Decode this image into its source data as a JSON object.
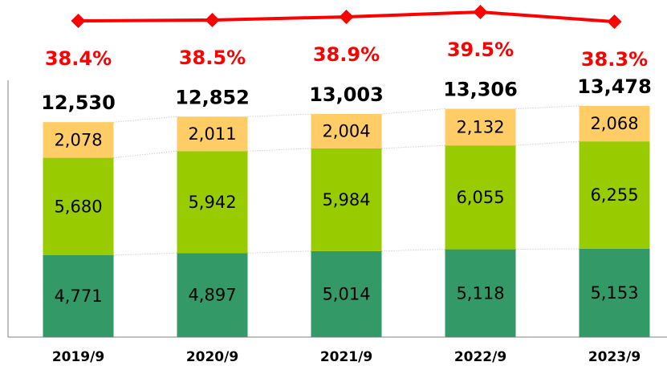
{
  "chart_data": {
    "type": "bar",
    "categories": [
      "2019/9",
      "2020/9",
      "2021/9",
      "2022/9",
      "2023/9"
    ],
    "stacked": true,
    "ylim": [
      0,
      14000
    ],
    "y2lim": [
      36,
      40
    ],
    "series": [
      {
        "color": "#339966",
        "values": [
          4771,
          4897,
          5014,
          5118,
          5153
        ],
        "value_labels": [
          "4,771",
          "4,897",
          "5,014",
          "5,118",
          "5,153"
        ]
      },
      {
        "color": "#99cc00",
        "values": [
          5680,
          5942,
          5984,
          6055,
          6255
        ],
        "value_labels": [
          "5,680",
          "5,942",
          "5,984",
          "6,055",
          "6,255"
        ]
      },
      {
        "color": "#ffcc66",
        "values": [
          2078,
          2011,
          2004,
          2132,
          2068
        ],
        "value_labels": [
          "2,078",
          "2,011",
          "2,004",
          "2,132",
          "2,068"
        ]
      },
      {
        "type": "line",
        "axis": "y2",
        "color": "#ff0000",
        "values": [
          38.4,
          38.5,
          38.9,
          39.5,
          38.3
        ],
        "value_labels": [
          "38.4%",
          "38.5%",
          "38.9%",
          "39.5%",
          "38.3%"
        ]
      }
    ],
    "totals": {
      "values": [
        12530,
        12852,
        13003,
        13306,
        13478
      ],
      "value_labels": [
        "12,530",
        "12,852",
        "13,003",
        "13,306",
        "13,478"
      ]
    }
  }
}
